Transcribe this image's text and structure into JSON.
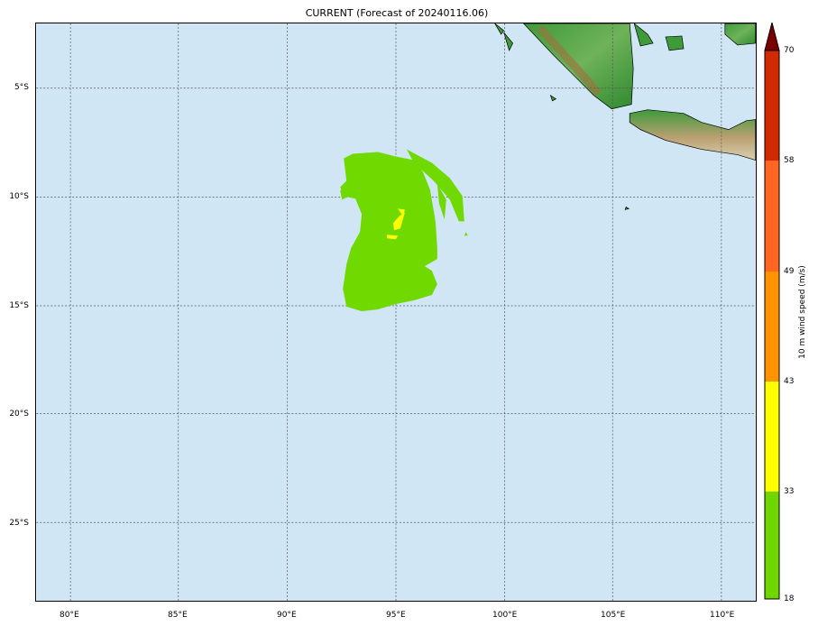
{
  "title": "CURRENT (Forecast of 20240116.06)",
  "map": {
    "lon_labels": [
      "80°E",
      "85°E",
      "90°E",
      "95°E",
      "100°E",
      "105°E",
      "110°E"
    ],
    "lat_labels": [
      "5°S",
      "10°S",
      "15°S",
      "20°S",
      "25°S"
    ],
    "ocean_color": "#d0e6f5",
    "gridlines": "dotted"
  },
  "colorbar": {
    "label": "10 m wind speed (m/s)",
    "ticks": [
      "18",
      "33",
      "43",
      "49",
      "58",
      "70"
    ],
    "colors": [
      "#6fd600",
      "#ffff00",
      "#ff9300",
      "#ff6420",
      "#d22a00",
      "#7a0000"
    ],
    "extend": "max"
  },
  "field": {
    "main_color": "#6fd900",
    "core_color": "#ffff00"
  }
}
